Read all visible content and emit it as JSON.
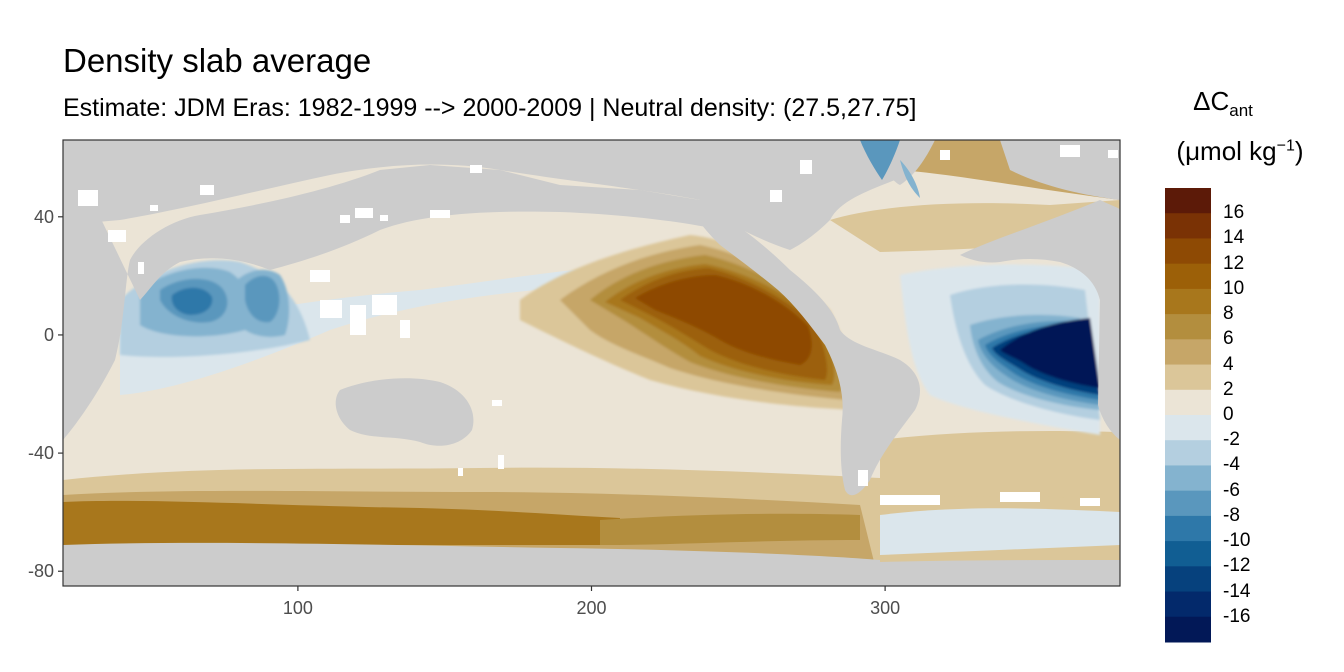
{
  "title": "Density slab average",
  "subtitle": "Estimate: JDM Eras: 1982-1999 --> 2000-2009 | Neutral density: (27.5,27.75]",
  "chart_data": {
    "type": "heatmap",
    "xlim": [
      20,
      380
    ],
    "ylim": [
      -85,
      66
    ],
    "x_ticks": [
      100,
      200,
      300
    ],
    "y_ticks": [
      40,
      0,
      -40,
      -80
    ],
    "land_color": "#cccccc",
    "legend": {
      "title": "ΔC",
      "title_sub": "ant",
      "unit_prefix": "(μmol kg",
      "unit_exp": "−1",
      "unit_suffix": ")",
      "labels": [
        "16",
        "14",
        "12",
        "10",
        "8",
        "6",
        "4",
        "2",
        "0",
        "-2",
        "-4",
        "-6",
        "-8",
        "-10",
        "-12",
        "-14",
        "-16"
      ],
      "colors": [
        "#5c1a08",
        "#7a3205",
        "#8e4a04",
        "#9c6008",
        "#a8771c",
        "#b38e3e",
        "#c6a668",
        "#dbc699",
        "#ebe4d6",
        "#dbe6ec",
        "#b4cfe0",
        "#84b3cf",
        "#5a97bd",
        "#2e78a9",
        "#115e93",
        "#06417d",
        "#03296b",
        "#021857"
      ]
    }
  }
}
